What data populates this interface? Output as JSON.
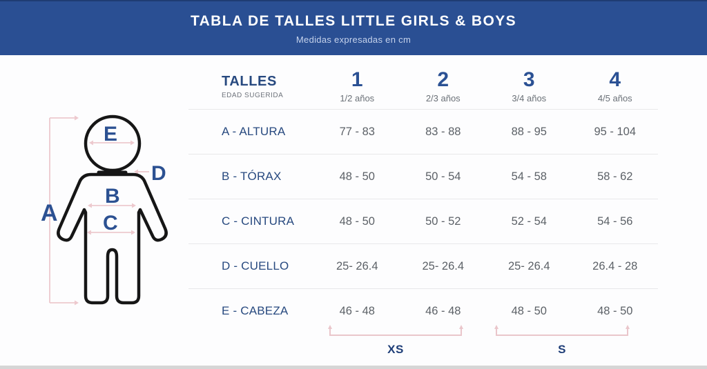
{
  "header": {
    "title": "TABLA DE TALLES LITTLE GIRLS & BOYS",
    "subtitle": "Medidas expresadas en cm"
  },
  "chart_data": {
    "type": "table",
    "title": "TABLA DE TALLES LITTLE GIRLS & BOYS",
    "subtitle": "Medidas expresadas en cm",
    "unit": "cm",
    "corner_header": "TALLES",
    "corner_subheader": "EDAD SUGERIDA",
    "columns": [
      {
        "size": "1",
        "age": "1/2 años",
        "group": "XS"
      },
      {
        "size": "2",
        "age": "2/3 años",
        "group": "XS"
      },
      {
        "size": "3",
        "age": "3/4 años",
        "group": "S"
      },
      {
        "size": "4",
        "age": "4/5 años",
        "group": "S"
      }
    ],
    "rows": [
      {
        "label": "A - ALTURA",
        "values": [
          "77 - 83",
          "83 - 88",
          "88 - 95",
          "95 - 104"
        ]
      },
      {
        "label": "B - TÓRAX",
        "values": [
          "48 - 50",
          "50 - 54",
          "54 - 58",
          "58 - 62"
        ]
      },
      {
        "label": "C - CINTURA",
        "values": [
          "48 - 50",
          "50 - 52",
          "52 - 54",
          "54 - 56"
        ]
      },
      {
        "label": "D - CUELLO",
        "values": [
          "25- 26.4",
          "25- 26.4",
          "25- 26.4",
          "26.4 - 28"
        ]
      },
      {
        "label": "E - CABEZA",
        "values": [
          "46 - 48",
          "46 - 48",
          "48 - 50",
          "48 - 50"
        ]
      }
    ],
    "group_brackets": [
      {
        "label": "XS",
        "columns": "1-2"
      },
      {
        "label": "S",
        "columns": "3-4"
      }
    ]
  },
  "figure": {
    "letters": {
      "a": "A",
      "b": "B",
      "c": "C",
      "d": "D",
      "e": "E"
    }
  },
  "colors": {
    "header_bg": "#2A4F93",
    "navy_text": "#27497F",
    "size_number_blue": "#2B5194",
    "value_gray": "#5C6167",
    "measure_pink": "#EDC9CE",
    "divider_gray": "#E8E8EA"
  }
}
